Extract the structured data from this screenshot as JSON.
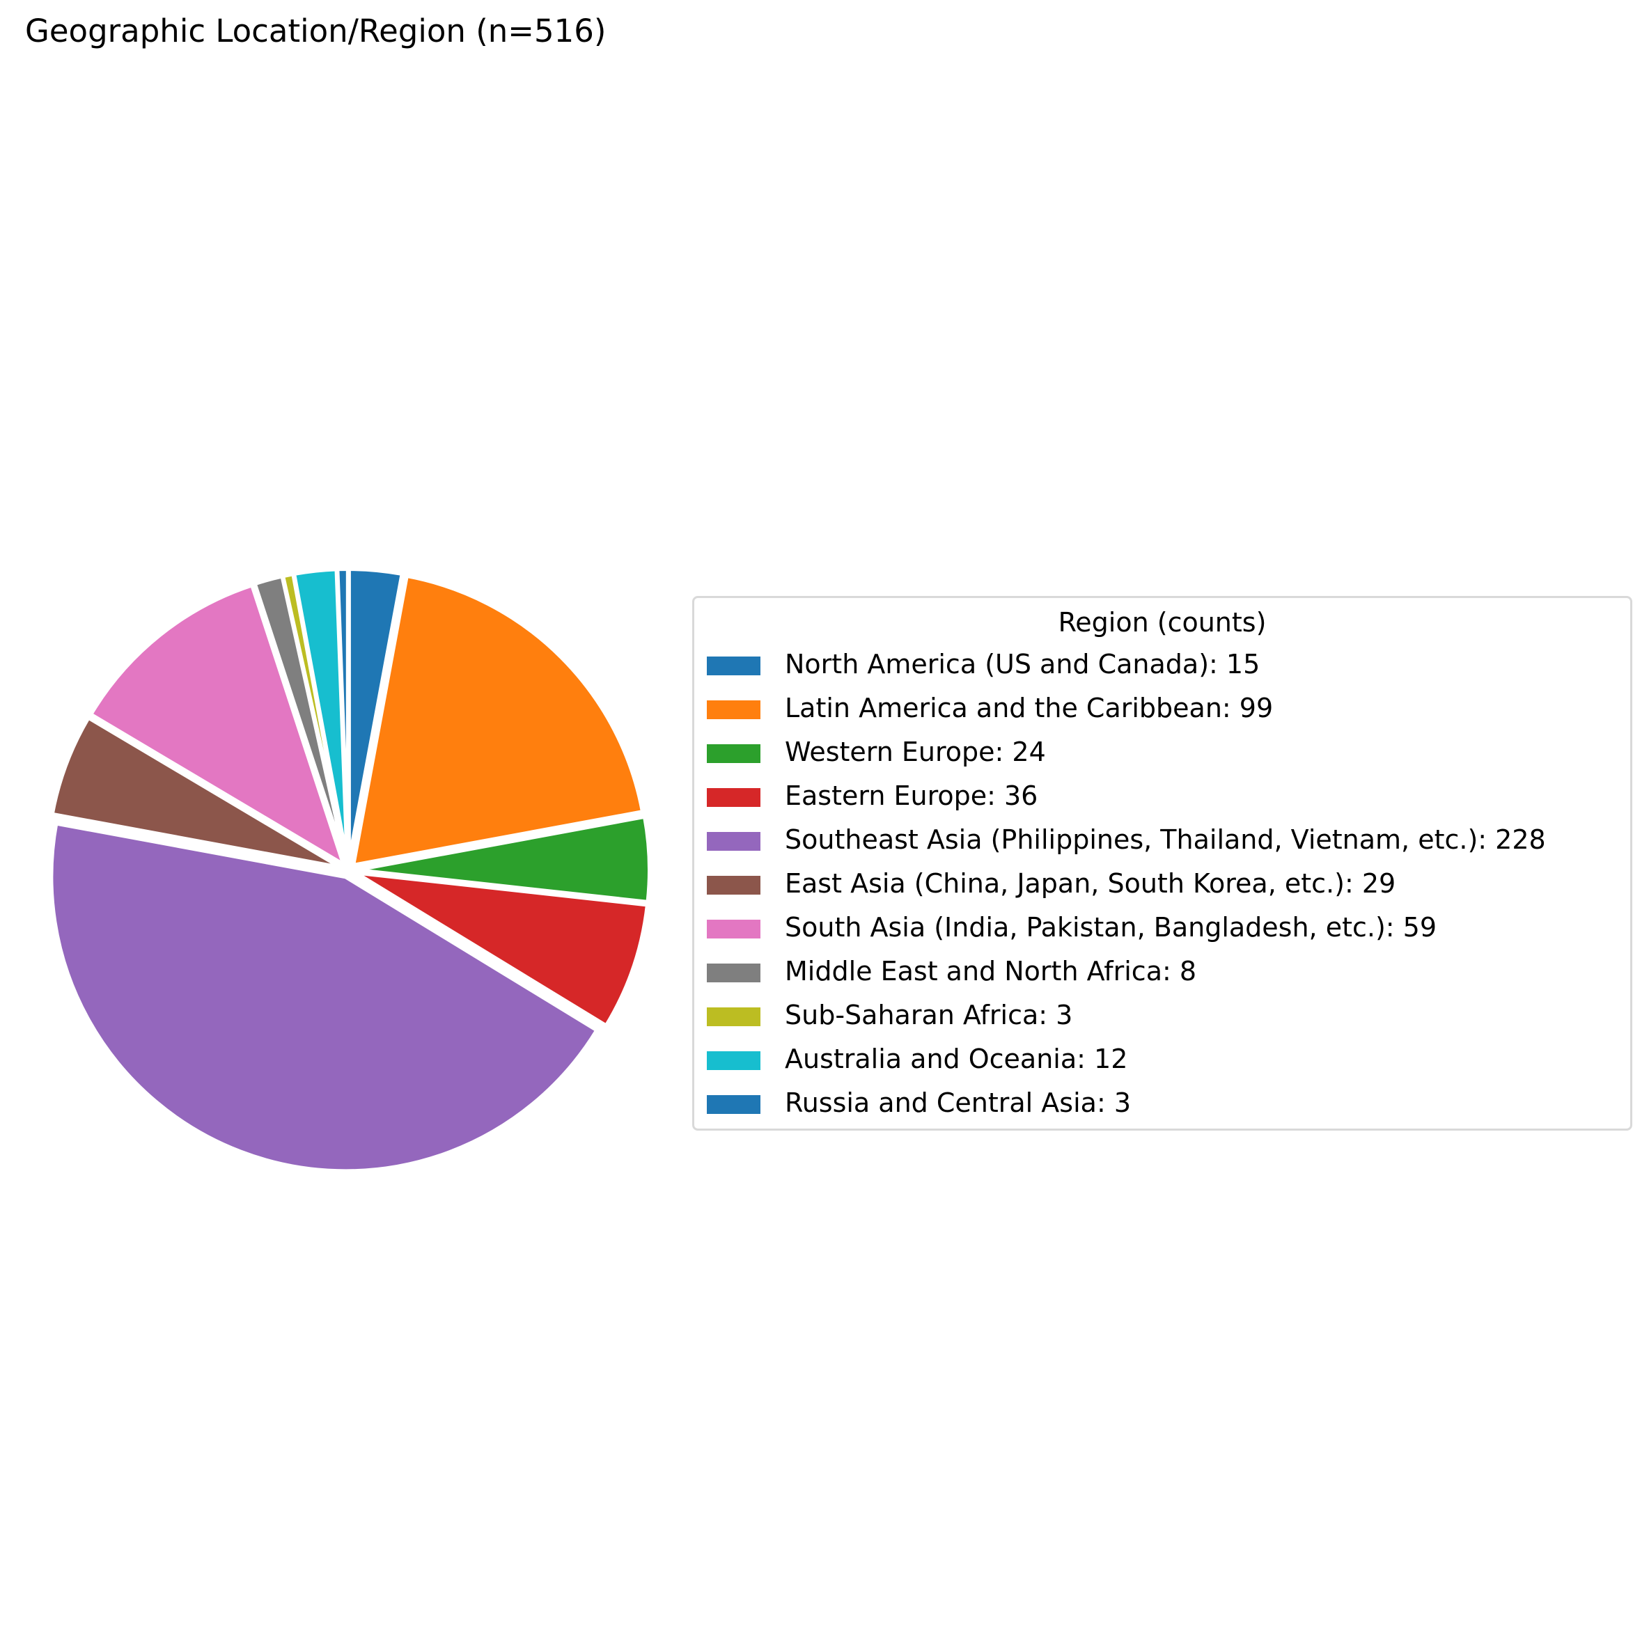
{
  "chart_data": {
    "type": "pie",
    "title": "Geographic Location/Region (n=516)",
    "legend_title": "Region (counts)",
    "legend_placement": "center-right",
    "start_angle_deg": 90,
    "direction": "clockwise",
    "slice_edge_color": "#ffffff",
    "slices": [
      {
        "label": "North America (US and Canada)",
        "value": 15,
        "legend": "North America (US and Canada): 15",
        "color": "#1f77b4"
      },
      {
        "label": "Latin America and the Caribbean",
        "value": 99,
        "legend": "Latin America and the Caribbean: 99",
        "color": "#ff7f0e"
      },
      {
        "label": "Western Europe",
        "value": 24,
        "legend": "Western Europe: 24",
        "color": "#2ca02c"
      },
      {
        "label": "Eastern Europe",
        "value": 36,
        "legend": "Eastern Europe: 36",
        "color": "#d62728"
      },
      {
        "label": "Southeast Asia (Philippines, Thailand, Vietnam, etc.)",
        "value": 228,
        "legend": "Southeast Asia (Philippines, Thailand, Vietnam, etc.): 228",
        "color": "#9467bd"
      },
      {
        "label": "East Asia (China, Japan, South Korea, etc.)",
        "value": 29,
        "legend": "East Asia (China, Japan, South Korea, etc.): 29",
        "color": "#8c564b"
      },
      {
        "label": "South Asia (India, Pakistan, Bangladesh, etc.)",
        "value": 59,
        "legend": "South Asia (India, Pakistan, Bangladesh, etc.): 59",
        "color": "#e377c2"
      },
      {
        "label": "Middle East and North Africa",
        "value": 8,
        "legend": "Middle East and North Africa: 8",
        "color": "#7f7f7f"
      },
      {
        "label": "Sub-Saharan Africa",
        "value": 3,
        "legend": "Sub-Saharan Africa: 3",
        "color": "#bcbd22"
      },
      {
        "label": "Australia and Oceania",
        "value": 12,
        "legend": "Australia and Oceania: 12",
        "color": "#17becf"
      },
      {
        "label": "Russia and Central Asia",
        "value": 3,
        "legend": "Russia and Central Asia: 3",
        "color": "#1f77b4"
      }
    ]
  }
}
